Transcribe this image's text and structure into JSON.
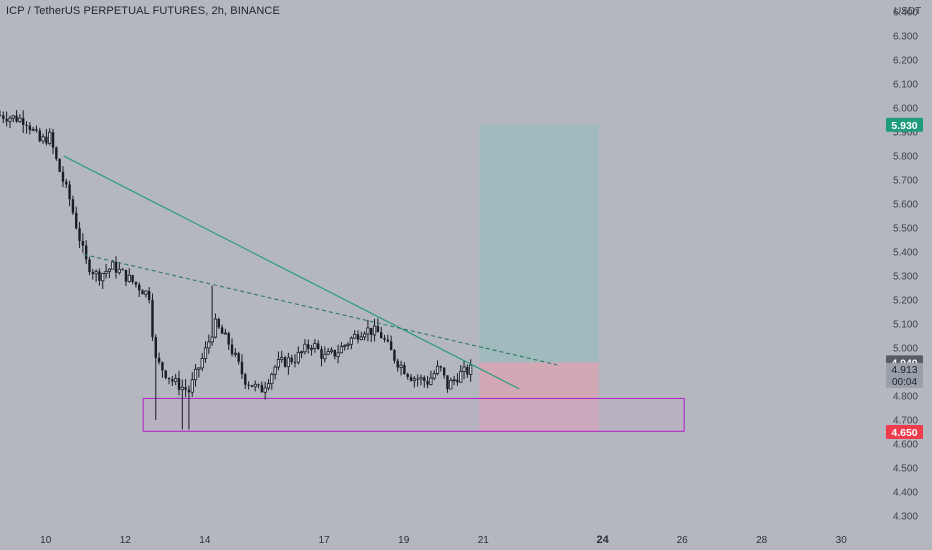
{
  "header": {
    "title": "ICP / TetherUS PERPETUAL FUTURES, 2h, BINANCE"
  },
  "colors": {
    "background": "#b4b7bf",
    "candle": "#1a1c22",
    "trendline": "#1f9a73",
    "dashed_line": "#2f7a62",
    "target_zone": "#9fb9bd",
    "stop_zone": "#d4a6b4",
    "support_box_border": "#b020c8",
    "support_box_fill": "#c0a8c8",
    "target_badge": "#1e9c7c",
    "stop_badge": "#ef3b4b",
    "entry_badge": "#555a64",
    "price_badge": "#9aa0aa"
  },
  "chart_data": {
    "type": "candlestick",
    "symbol": "ICP / TetherUS PERPETUAL FUTURES",
    "interval": "2h",
    "exchange": "BINANCE",
    "y_axis_label": "USDT",
    "ylim": [
      4.25,
      6.45
    ],
    "xlim": [
      8.85,
      31.1
    ],
    "y_ticks": [
      "6.400",
      "6.300",
      "6.200",
      "6.100",
      "6.000",
      "5.900",
      "5.800",
      "5.700",
      "5.600",
      "5.500",
      "5.400",
      "5.300",
      "5.200",
      "5.100",
      "5.000",
      "4.900",
      "4.800",
      "4.700",
      "4.600",
      "4.500",
      "4.400",
      "4.300"
    ],
    "x_ticks": [
      {
        "value": 10,
        "label": "10"
      },
      {
        "value": 12,
        "label": "12"
      },
      {
        "value": 14,
        "label": "14"
      },
      {
        "value": 17,
        "label": "17"
      },
      {
        "value": 19,
        "label": "19"
      },
      {
        "value": 21,
        "label": "21"
      },
      {
        "value": 24,
        "label": "24"
      },
      {
        "value": 26,
        "label": "26"
      },
      {
        "value": 28,
        "label": "28"
      },
      {
        "value": 30,
        "label": "30"
      }
    ],
    "bold_x_ticks": [
      "24"
    ],
    "price_path": [
      [
        8.85,
        5.97
      ],
      [
        9.5,
        5.95
      ],
      [
        9.85,
        5.86
      ],
      [
        10.1,
        5.88
      ],
      [
        10.3,
        5.76
      ],
      [
        10.6,
        5.62
      ],
      [
        11.0,
        5.36
      ],
      [
        11.3,
        5.3
      ],
      [
        11.7,
        5.34
      ],
      [
        12.0,
        5.3
      ],
      [
        12.6,
        5.22
      ],
      [
        12.75,
        4.95
      ],
      [
        13.2,
        4.86
      ],
      [
        13.6,
        4.82
      ],
      [
        14.0,
        4.98
      ],
      [
        14.25,
        5.1
      ],
      [
        14.6,
        5.02
      ],
      [
        15.0,
        4.87
      ],
      [
        15.4,
        4.82
      ],
      [
        15.8,
        4.93
      ],
      [
        16.3,
        4.96
      ],
      [
        16.7,
        5.02
      ],
      [
        17.0,
        4.96
      ],
      [
        17.3,
        4.98
      ],
      [
        17.7,
        5.04
      ],
      [
        18.0,
        5.08
      ],
      [
        18.4,
        5.06
      ],
      [
        18.8,
        4.95
      ],
      [
        19.2,
        4.88
      ],
      [
        19.6,
        4.86
      ],
      [
        19.9,
        4.92
      ],
      [
        20.1,
        4.84
      ],
      [
        20.4,
        4.89
      ],
      [
        20.75,
        4.913
      ]
    ],
    "wick_extremes": [
      {
        "x": 12.75,
        "low": 4.7
      },
      {
        "x": 13.45,
        "low": 4.66
      },
      {
        "x": 13.6,
        "low": 4.66
      },
      {
        "x": 14.2,
        "high": 5.26
      }
    ],
    "lines": [
      {
        "type": "trendline",
        "from": [
          10.45,
          5.8
        ],
        "to": [
          21.9,
          4.83
        ]
      },
      {
        "type": "dashed",
        "from": [
          10.95,
          5.39
        ],
        "to": [
          22.85,
          4.93
        ]
      }
    ],
    "support_zone": {
      "x_from": 12.45,
      "x_to": 26.05,
      "y_low": 4.653,
      "y_high": 4.79
    },
    "position": {
      "type": "long",
      "x_from": 20.9,
      "x_to": 23.9,
      "entry": 4.94,
      "target": 5.93,
      "stop": 4.65
    },
    "price_labels": {
      "target": "5.930",
      "entry": "4.940",
      "current": "4.913",
      "countdown": "00:04",
      "stop": "4.650"
    }
  }
}
